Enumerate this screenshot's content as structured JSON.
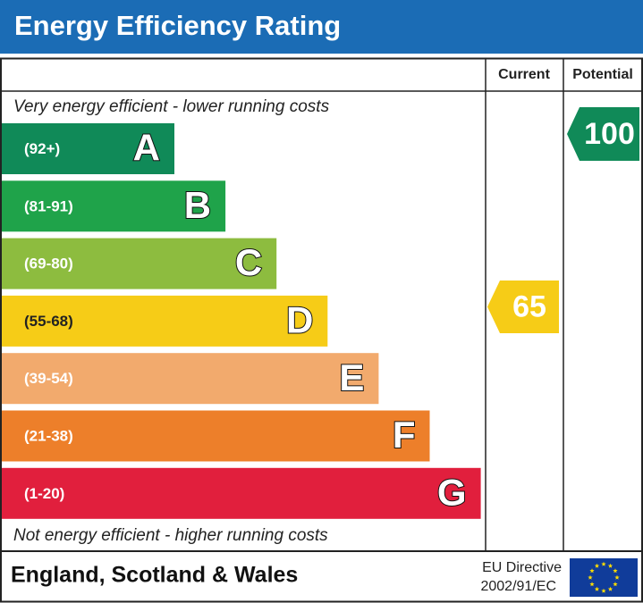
{
  "header": {
    "title": "Energy Efficiency Rating"
  },
  "columns": [
    "Current",
    "Potential"
  ],
  "top_note": "Very energy efficient - lower running costs",
  "bottom_note": "Not energy efficient - higher running costs",
  "bands": [
    {
      "range": "(92+)",
      "letter": "A",
      "color": "#108a58"
    },
    {
      "range": "(81-91)",
      "letter": "B",
      "color": "#1fa34a"
    },
    {
      "range": "(69-80)",
      "letter": "C",
      "color": "#8dbc3f"
    },
    {
      "range": "(55-68)",
      "letter": "D",
      "color": "#f6cc17"
    },
    {
      "range": "(39-54)",
      "letter": "E",
      "color": "#f2aa6d"
    },
    {
      "range": "(21-38)",
      "letter": "F",
      "color": "#ed7f2a"
    },
    {
      "range": "(1-20)",
      "letter": "G",
      "color": "#e11f3d"
    }
  ],
  "current": {
    "value": 65,
    "color": "#f6cc17"
  },
  "potential": {
    "value": 100,
    "color": "#108a58"
  },
  "footer": {
    "region": "England, Scotland & Wales",
    "directive": [
      "EU Directive",
      "2002/91/EC"
    ]
  }
}
